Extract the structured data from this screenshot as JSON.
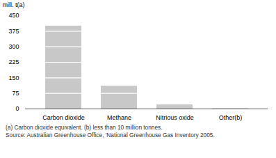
{
  "chart_data": {
    "type": "bar",
    "categories": [
      "Carbon dioxide",
      "Methane",
      "Nitrious oxide",
      "Other(b)"
    ],
    "values": [
      400,
      110,
      20,
      2
    ],
    "color": "#c8c8c8",
    "ylabel": "mill. t(a)",
    "ylim": [
      0,
      450
    ],
    "yticks": [
      0,
      75,
      150,
      225,
      300,
      375,
      450
    ],
    "grid": true,
    "annotations": [
      "(a) Carbon dioxide equivalent.  (b) less than 10 million tonnes.",
      "Source: Australian Greenhouse Office, 'National Greenhouse Gas Inventory 2005."
    ]
  }
}
